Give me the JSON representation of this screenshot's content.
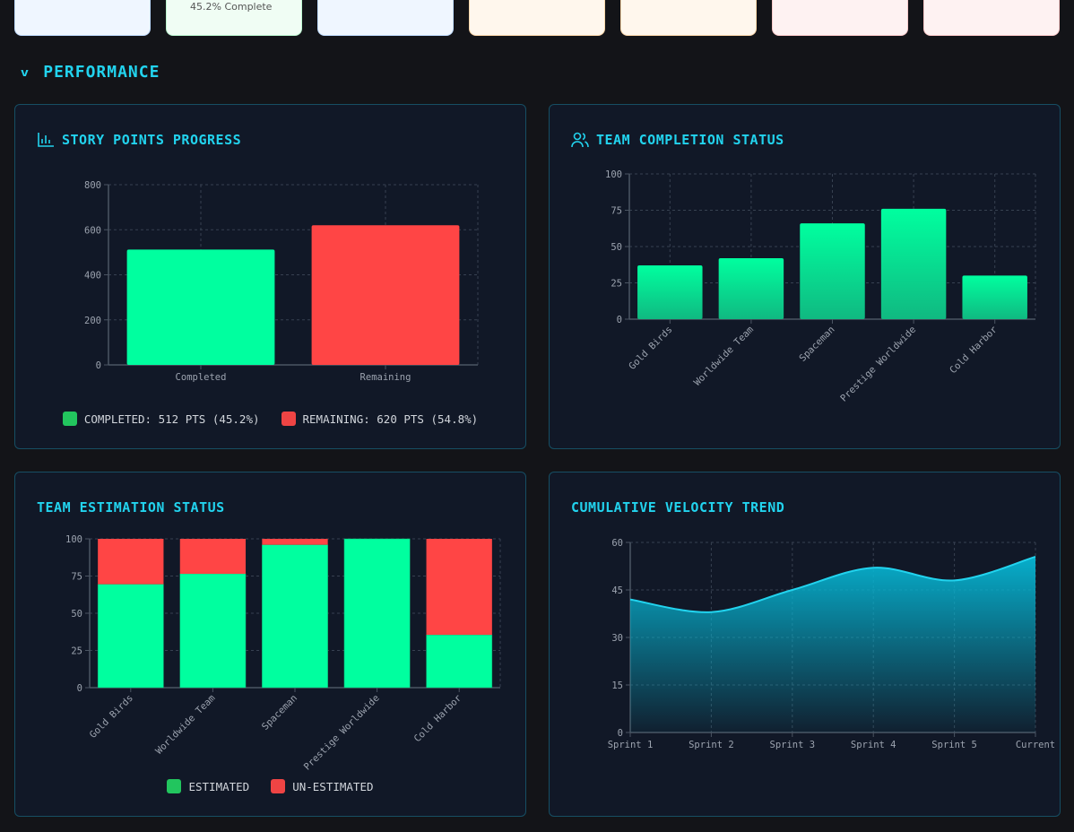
{
  "stat_cards": [
    {
      "bg": "#eff6ff",
      "border": "#bfdbfe",
      "text": ""
    },
    {
      "bg": "#f0fdf4",
      "border": "#bbf7d0",
      "text": "45.2% Complete"
    },
    {
      "bg": "#eff6ff",
      "border": "#bfdbfe",
      "text": ""
    },
    {
      "bg": "#fff7ed",
      "border": "#fed7aa",
      "text": ""
    },
    {
      "bg": "#fff7ed",
      "border": "#fed7aa",
      "text": ""
    },
    {
      "bg": "#fef2f2",
      "border": "#fecaca",
      "text": ""
    },
    {
      "bg": "#fef2f2",
      "border": "#fecaca",
      "text": ""
    }
  ],
  "section": {
    "title": "PERFORMANCE",
    "icon": "chevron-down-icon"
  },
  "colors": {
    "accent": "#22d3ee",
    "green": "#00ff9f",
    "red": "#ff4545",
    "panel": "#111827"
  },
  "panels": {
    "story": {
      "title": "STORY POINTS PROGRESS",
      "icon": "bar-chart-icon",
      "legend": [
        "COMPLETED: 512 PTS (45.2%)",
        "REMAINING: 620 PTS (54.8%)"
      ]
    },
    "completion": {
      "title": "TEAM COMPLETION STATUS",
      "icon": "users-icon"
    },
    "estimation": {
      "title": "TEAM ESTIMATION STATUS",
      "legend": [
        "ESTIMATED",
        "UN-ESTIMATED"
      ]
    },
    "velocity": {
      "title": "CUMULATIVE VELOCITY TREND"
    }
  },
  "chart_data": [
    {
      "type": "bar",
      "categories": [
        "Completed",
        "Remaining"
      ],
      "values": [
        512,
        620
      ],
      "ylim": [
        0,
        800
      ],
      "yticks": [
        0,
        200,
        400,
        600,
        800
      ],
      "colors": [
        "#00ff9f",
        "#ff4545"
      ],
      "grid": true
    },
    {
      "type": "bar",
      "categories": [
        "Gold Birds",
        "Worldwide Team",
        "Spaceman",
        "Prestige Worldwide",
        "Cold Harbor"
      ],
      "values": [
        37,
        42,
        66,
        76,
        30
      ],
      "ylim": [
        0,
        100
      ],
      "yticks": [
        0,
        25,
        50,
        75,
        100
      ],
      "grid": true
    },
    {
      "type": "bar",
      "stacked": true,
      "categories": [
        "Gold Birds",
        "Worldwide Team",
        "Spaceman",
        "Prestige Worldwide",
        "Cold Harbor"
      ],
      "series": [
        {
          "name": "ESTIMATED",
          "values": [
            69.5,
            76.5,
            96,
            100,
            35.5
          ]
        },
        {
          "name": "UN-ESTIMATED",
          "values": [
            30.5,
            23.5,
            4,
            0,
            64.5
          ]
        }
      ],
      "ylim": [
        0,
        100
      ],
      "yticks": [
        0,
        25,
        50,
        75,
        100
      ],
      "grid": true,
      "legend": "bottom"
    },
    {
      "type": "area",
      "categories": [
        "Sprint 1",
        "Sprint 2",
        "Sprint 3",
        "Sprint 4",
        "Sprint 5",
        "Current"
      ],
      "values": [
        42,
        38,
        45,
        52,
        48,
        55.5
      ],
      "ylim": [
        0,
        60
      ],
      "yticks": [
        0,
        15,
        30,
        45,
        60
      ],
      "grid": true
    }
  ]
}
